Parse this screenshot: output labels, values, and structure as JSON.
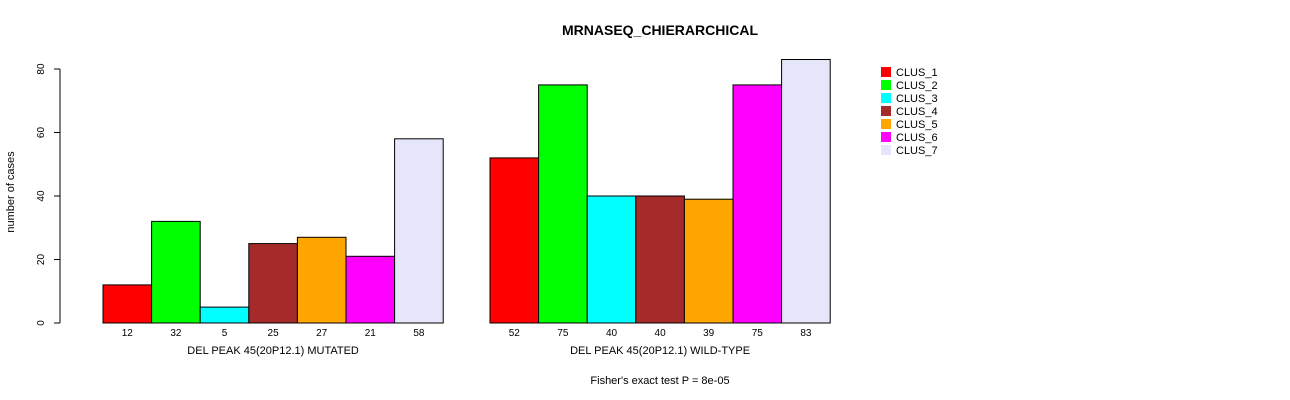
{
  "chart_data": {
    "type": "bar",
    "title": "MRNASEQ_CHIERARCHICAL",
    "ylabel": "number of cases",
    "ylim": [
      0,
      80
    ],
    "yticks": [
      "0",
      "20",
      "40",
      "60",
      "80"
    ],
    "footer": "Fisher's exact test P = 8e-05",
    "groups": [
      {
        "name": "DEL PEAK 45(20P12.1) MUTATED",
        "values": [
          12,
          32,
          5,
          25,
          27,
          21,
          58
        ],
        "labels": [
          "12",
          "32",
          "5",
          "25",
          "27",
          "21",
          "58"
        ]
      },
      {
        "name": "DEL PEAK 45(20P12.1) WILD-TYPE",
        "values": [
          52,
          75,
          40,
          40,
          39,
          75,
          83
        ],
        "labels": [
          "52",
          "75",
          "40",
          "40",
          "39",
          "75",
          "83"
        ]
      }
    ],
    "series": [
      {
        "name": "CLUS_1",
        "color": "#ff0000"
      },
      {
        "name": "CLUS_2",
        "color": "#00ff00"
      },
      {
        "name": "CLUS_3",
        "color": "#00ffff"
      },
      {
        "name": "CLUS_4",
        "color": "#a52a2a"
      },
      {
        "name": "CLUS_5",
        "color": "#ffa500"
      },
      {
        "name": "CLUS_6",
        "color": "#ff00ff"
      },
      {
        "name": "CLUS_7",
        "color": "#e6e6fa"
      }
    ],
    "legend_position": "top-right"
  }
}
